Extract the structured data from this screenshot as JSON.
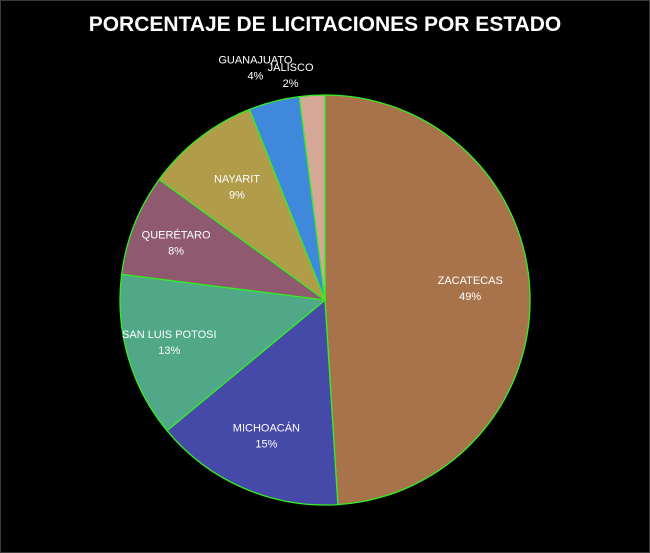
{
  "chart_data": {
    "type": "pie",
    "title": "PORCENTAJE DE LICITACIONES POR ESTADO",
    "categories": [
      "ZACATECAS",
      "MICHOACÁN",
      "SAN LUIS POTOSI",
      "QUERÉTARO",
      "NAYARIT",
      "GUANAJUATO",
      "JALISCO"
    ],
    "values": [
      49,
      15,
      13,
      8,
      9,
      4,
      2
    ],
    "value_labels": [
      "49%",
      "15%",
      "13%",
      "8%",
      "9%",
      "4%",
      "2%"
    ],
    "colors": [
      "#A8734A",
      "#4549A8",
      "#50A888",
      "#8F5A70",
      "#B19C4A",
      "#4088DC",
      "#D6A898"
    ],
    "edge_color": "#33EE22",
    "legend": "none",
    "start_angle_deg": 0,
    "direction": "clockwise"
  }
}
